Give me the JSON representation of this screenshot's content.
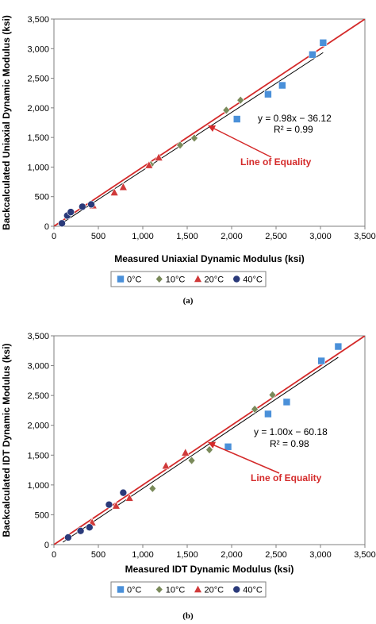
{
  "chart_data": [
    {
      "type": "scatter",
      "panel_label": "(a)",
      "xlabel": "Measured Uniaxial Dynamic Modulus (ksi)",
      "ylabel": "Backcalculated Uniaxial Dynamic Modulus (ksi)",
      "xlim": [
        0,
        3500
      ],
      "ylim": [
        0,
        3500
      ],
      "xticks": [
        "0",
        "500",
        "1,000",
        "1,500",
        "2,000",
        "2,500",
        "3,000",
        "3,500"
      ],
      "yticks": [
        "0",
        "500",
        "1,000",
        "1,500",
        "2,000",
        "2,500",
        "3,000",
        "3,500"
      ],
      "grid": false,
      "series": [
        {
          "name": "0°C",
          "marker": "square",
          "color": "#4a90d9",
          "points": [
            [
              2060,
              1810
            ],
            [
              2410,
              2230
            ],
            [
              2570,
              2380
            ],
            [
              2910,
              2900
            ],
            [
              3030,
              3100
            ]
          ]
        },
        {
          "name": "10°C",
          "marker": "diamond",
          "color": "#7a8a5a",
          "points": [
            [
              1090,
              1040
            ],
            [
              1420,
              1370
            ],
            [
              1580,
              1490
            ],
            [
              1940,
              1960
            ],
            [
              2100,
              2130
            ]
          ]
        },
        {
          "name": "20°C",
          "marker": "triangle",
          "color": "#d03a3a",
          "points": [
            [
              440,
              350
            ],
            [
              680,
              570
            ],
            [
              780,
              660
            ],
            [
              1070,
              1030
            ],
            [
              1180,
              1160
            ]
          ]
        },
        {
          "name": "40°C",
          "marker": "circle",
          "color": "#2a3a7a",
          "points": [
            [
              90,
              50
            ],
            [
              150,
              180
            ],
            [
              190,
              240
            ],
            [
              320,
              330
            ],
            [
              420,
              370
            ]
          ]
        }
      ],
      "fit": {
        "slope": 0.98,
        "intercept": -36.12,
        "x_range": [
          80,
          3030
        ],
        "equation": "y = 0.98x − 36.12",
        "r2": "R² = 0.99"
      },
      "equality_line_label": "Line of Equality",
      "legend": [
        "0°C",
        "10°C",
        "20°C",
        "40°C"
      ],
      "legend_position": "bottom"
    },
    {
      "type": "scatter",
      "panel_label": "(b)",
      "xlabel": "Measured IDT Dynamic Modulus (ksi)",
      "ylabel": "Backcalculated IDT Dynamic Modulus (ksi)",
      "xlim": [
        0,
        3500
      ],
      "ylim": [
        0,
        3500
      ],
      "xticks": [
        "0",
        "500",
        "1,000",
        "1,500",
        "2,000",
        "2,500",
        "3,000",
        "3,500"
      ],
      "yticks": [
        "0",
        "500",
        "1,000",
        "1,500",
        "2,000",
        "2,500",
        "3,000",
        "3,500"
      ],
      "grid": false,
      "series": [
        {
          "name": "0°C",
          "marker": "square",
          "color": "#4a90d9",
          "points": [
            [
              1960,
              1640
            ],
            [
              2410,
              2190
            ],
            [
              2620,
              2390
            ],
            [
              3010,
              3080
            ],
            [
              3200,
              3320
            ]
          ]
        },
        {
          "name": "10°C",
          "marker": "diamond",
          "color": "#7a8a5a",
          "points": [
            [
              1110,
              940
            ],
            [
              1550,
              1410
            ],
            [
              1750,
              1590
            ],
            [
              2260,
              2270
            ],
            [
              2460,
              2510
            ]
          ]
        },
        {
          "name": "20°C",
          "marker": "triangle",
          "color": "#d03a3a",
          "points": [
            [
              430,
              370
            ],
            [
              700,
              650
            ],
            [
              850,
              780
            ],
            [
              1260,
              1320
            ],
            [
              1480,
              1540
            ]
          ]
        },
        {
          "name": "40°C",
          "marker": "circle",
          "color": "#2a3a7a",
          "points": [
            [
              160,
              120
            ],
            [
              300,
              230
            ],
            [
              400,
              290
            ],
            [
              620,
              670
            ],
            [
              780,
              870
            ]
          ]
        }
      ],
      "fit": {
        "slope": 1.0,
        "intercept": -60.18,
        "x_range": [
          100,
          3200
        ],
        "equation": "y = 1.00x − 60.18",
        "r2": "R² = 0.98"
      },
      "equality_line_label": "Line of Equality",
      "legend": [
        "0°C",
        "10°C",
        "20°C",
        "40°C"
      ],
      "legend_position": "bottom"
    }
  ]
}
